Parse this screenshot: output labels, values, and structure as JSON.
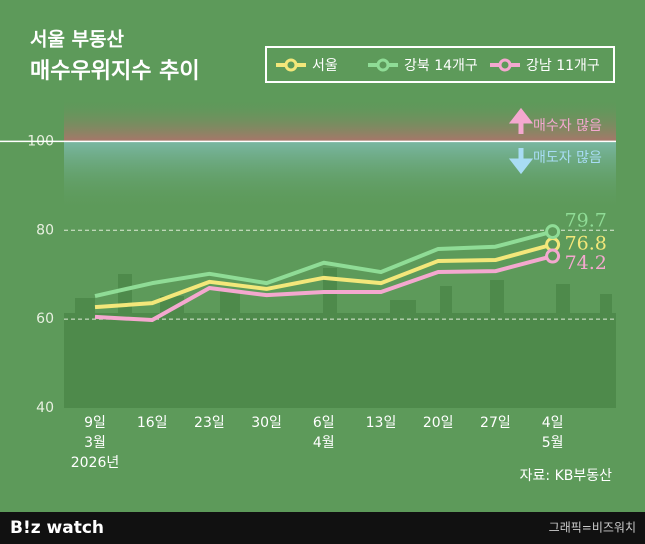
{
  "chart_data": {
    "type": "line",
    "title": "서울 부동산",
    "subtitle": "매수우위지수 추이",
    "categories": [
      "9일\n3월\n2026년",
      "16일",
      "23일",
      "30일",
      "6일\n4월",
      "13일",
      "20일",
      "27일",
      "4일\n5월"
    ],
    "series": [
      {
        "name": "서울",
        "color": "#f3e77a",
        "values": [
          62.7,
          63.6,
          68.4,
          66.8,
          69.3,
          68.1,
          73.1,
          73.3,
          76.8
        ]
      },
      {
        "name": "강북 14개구",
        "color": "#8fdc96",
        "values": [
          65.2,
          68.1,
          70.2,
          68.1,
          72.7,
          70.6,
          75.8,
          76.3,
          79.7
        ]
      },
      {
        "name": "강남 11개구",
        "color": "#f4a8cf",
        "values": [
          60.5,
          59.8,
          67.0,
          65.4,
          66.1,
          66.1,
          70.6,
          70.8,
          74.2
        ]
      }
    ],
    "ylim": [
      40,
      110
    ],
    "yticks": [
      40,
      60,
      80,
      100
    ],
    "grid": true,
    "reference_line": 100,
    "annotations": {
      "above": "매수자 많음",
      "below": "매도자 많음"
    },
    "source": "자료: KB부동산",
    "footer": {
      "logo": "B!z watch",
      "credit": "그래픽=비즈워치"
    }
  }
}
